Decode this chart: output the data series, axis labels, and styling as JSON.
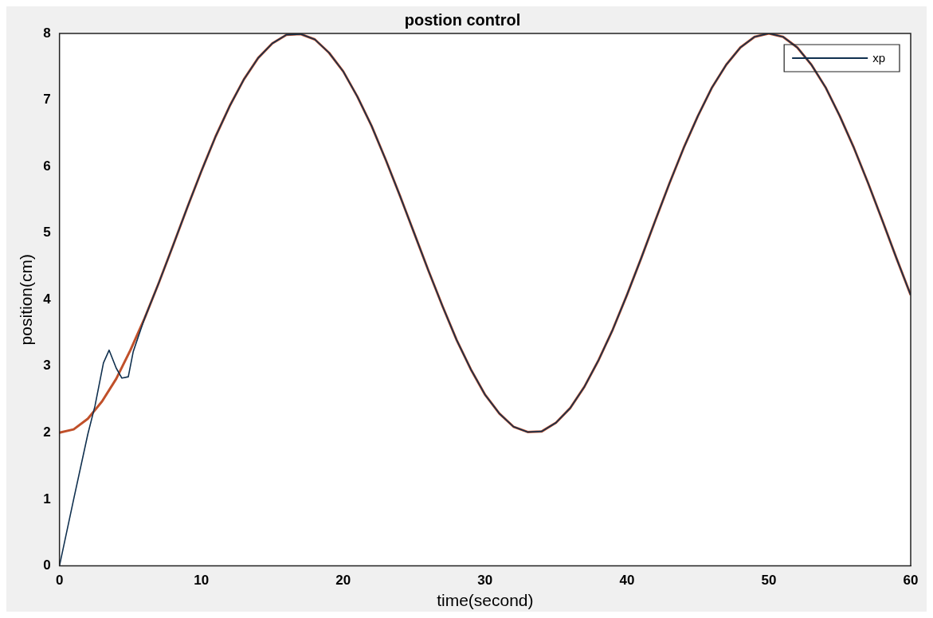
{
  "chart_data": {
    "type": "line",
    "title": "postion control",
    "xlabel": "time(second)",
    "ylabel": "position(cm)",
    "xlim": [
      0,
      60
    ],
    "xticks": [
      0,
      10,
      20,
      30,
      40,
      50,
      60
    ],
    "ylim": [
      0,
      8
    ],
    "yticks": [
      0,
      1,
      2,
      3,
      4,
      5,
      6,
      7,
      8
    ],
    "grid": false,
    "legend": "top right",
    "marker": "none",
    "line_style": "solid",
    "series": [
      {
        "color": "#c0502a",
        "x": [
          0,
          1,
          2,
          3,
          4,
          5,
          6,
          7,
          8,
          9,
          10,
          11,
          12,
          13,
          14,
          15,
          16,
          17,
          18,
          19,
          20,
          21,
          22,
          23,
          24,
          25,
          26,
          27,
          28,
          29,
          30,
          31,
          32,
          33,
          34,
          35,
          36,
          37,
          38,
          39,
          40,
          41,
          42,
          43,
          44,
          45,
          46,
          47,
          48,
          49,
          50,
          51,
          52,
          53,
          54,
          55,
          56,
          57,
          58,
          59,
          60
        ],
        "values": [
          2.0,
          2.05,
          2.21,
          2.47,
          2.81,
          3.24,
          3.72,
          4.25,
          4.81,
          5.38,
          5.93,
          6.45,
          6.91,
          7.31,
          7.63,
          7.85,
          7.98,
          7.99,
          7.91,
          7.71,
          7.43,
          7.05,
          6.61,
          6.1,
          5.56,
          5.0,
          4.44,
          3.9,
          3.39,
          2.95,
          2.57,
          2.29,
          2.09,
          2.01,
          2.02,
          2.15,
          2.37,
          2.69,
          3.09,
          3.55,
          4.07,
          4.62,
          5.19,
          5.75,
          6.28,
          6.76,
          7.19,
          7.53,
          7.79,
          7.95,
          8.0,
          7.95,
          7.79,
          7.53,
          7.19,
          6.76,
          6.28,
          5.75,
          5.19,
          4.62,
          4.07
        ]
      },
      {
        "name": "xp",
        "color": "#10304f",
        "x": [
          0,
          1,
          2,
          2.5,
          3.1,
          3.5,
          4,
          4.4,
          4.85,
          5.2,
          6,
          7,
          8,
          9,
          10,
          11,
          12,
          13,
          14,
          15,
          16,
          17,
          18,
          19,
          20,
          21,
          22,
          23,
          24,
          25,
          26,
          27,
          28,
          29,
          30,
          31,
          32,
          33,
          34,
          35,
          36,
          37,
          38,
          39,
          40,
          41,
          42,
          43,
          44,
          45,
          46,
          47,
          48,
          49,
          50,
          51,
          52,
          53,
          54,
          55,
          56,
          57,
          58,
          59,
          60
        ],
        "values": [
          0,
          1,
          1.98,
          2.4,
          3.05,
          3.24,
          2.97,
          2.82,
          2.84,
          3.22,
          3.72,
          4.25,
          4.81,
          5.38,
          5.93,
          6.45,
          6.91,
          7.31,
          7.63,
          7.85,
          7.98,
          7.99,
          7.91,
          7.71,
          7.43,
          7.05,
          6.61,
          6.1,
          5.56,
          5.0,
          4.44,
          3.9,
          3.39,
          2.95,
          2.57,
          2.29,
          2.09,
          2.01,
          2.02,
          2.15,
          2.37,
          2.69,
          3.09,
          3.55,
          4.07,
          4.62,
          5.19,
          5.75,
          6.28,
          6.76,
          7.19,
          7.53,
          7.79,
          7.95,
          8.0,
          7.95,
          7.79,
          7.53,
          7.19,
          6.76,
          6.28,
          5.75,
          5.19,
          4.62,
          4.07
        ]
      }
    ]
  }
}
